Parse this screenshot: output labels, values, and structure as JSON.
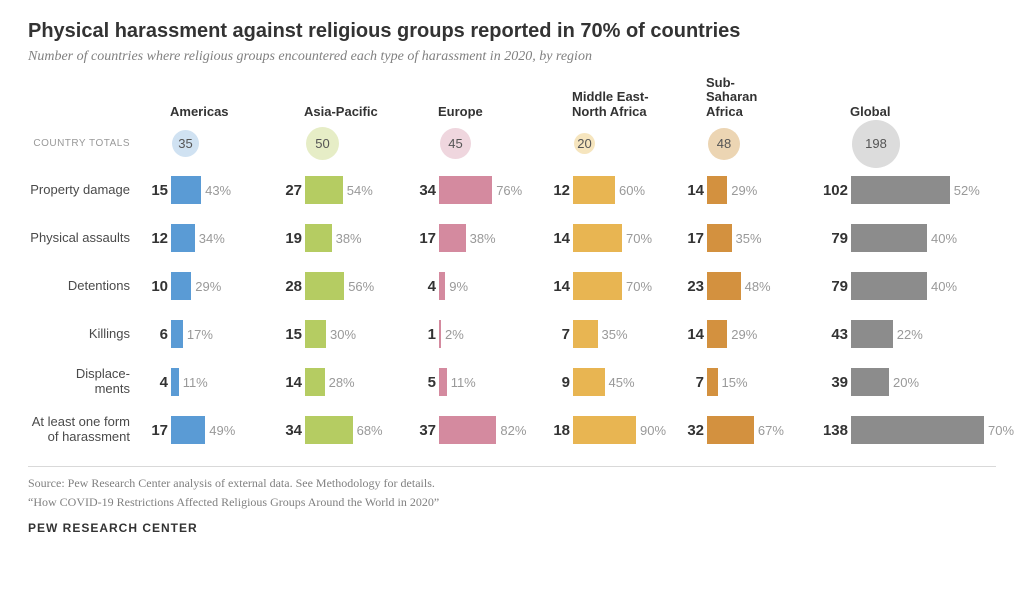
{
  "title": "Physical harassment against religious groups reported in 70% of countries",
  "subtitle": "Number of countries where religious groups encountered each type of harassment in 2020, by region",
  "country_totals_label": "COUNTRY TOTALS",
  "regions": [
    {
      "key": "americas",
      "label": "Americas",
      "total": 35,
      "color": "#5a9bd5",
      "circle_bg": "#d0e2f2",
      "circle_size": 27
    },
    {
      "key": "asia",
      "label": "Asia-Pacific",
      "total": 50,
      "color": "#b5cc62",
      "circle_bg": "#e6edc6",
      "circle_size": 33
    },
    {
      "key": "europe",
      "label": "Europe",
      "total": 45,
      "color": "#d48a9f",
      "circle_bg": "#efd6de",
      "circle_size": 31
    },
    {
      "key": "mena",
      "label": "Middle East-\nNorth Africa",
      "total": 20,
      "color": "#e8b552",
      "circle_bg": "#f6e5be",
      "circle_size": 21
    },
    {
      "key": "ssa",
      "label": "Sub-\nSaharan\nAfrica",
      "total": 48,
      "color": "#d3913f",
      "circle_bg": "#ecd5b3",
      "circle_size": 32
    },
    {
      "key": "global",
      "label": "Global",
      "total": 198,
      "color": "#8c8c8c",
      "circle_bg": "#dcdcdc",
      "circle_size": 48
    }
  ],
  "categories": [
    {
      "label": "Property damage",
      "data": [
        {
          "v": 15,
          "p": 43
        },
        {
          "v": 27,
          "p": 54
        },
        {
          "v": 34,
          "p": 76
        },
        {
          "v": 12,
          "p": 60
        },
        {
          "v": 14,
          "p": 29
        },
        {
          "v": 102,
          "p": 52
        }
      ]
    },
    {
      "label": "Physical assaults",
      "data": [
        {
          "v": 12,
          "p": 34
        },
        {
          "v": 19,
          "p": 38
        },
        {
          "v": 17,
          "p": 38
        },
        {
          "v": 14,
          "p": 70
        },
        {
          "v": 17,
          "p": 35
        },
        {
          "v": 79,
          "p": 40
        }
      ]
    },
    {
      "label": "Detentions",
      "data": [
        {
          "v": 10,
          "p": 29
        },
        {
          "v": 28,
          "p": 56
        },
        {
          "v": 4,
          "p": 9
        },
        {
          "v": 14,
          "p": 70
        },
        {
          "v": 23,
          "p": 48
        },
        {
          "v": 79,
          "p": 40
        }
      ]
    },
    {
      "label": "Killings",
      "data": [
        {
          "v": 6,
          "p": 17
        },
        {
          "v": 15,
          "p": 30
        },
        {
          "v": 1,
          "p": 2
        },
        {
          "v": 7,
          "p": 35
        },
        {
          "v": 14,
          "p": 29
        },
        {
          "v": 43,
          "p": 22
        }
      ]
    },
    {
      "label": "Displace-\nments",
      "data": [
        {
          "v": 4,
          "p": 11
        },
        {
          "v": 14,
          "p": 28
        },
        {
          "v": 5,
          "p": 11
        },
        {
          "v": 9,
          "p": 45
        },
        {
          "v": 7,
          "p": 15
        },
        {
          "v": 39,
          "p": 20
        }
      ]
    },
    {
      "label": "At least one form of harassment",
      "data": [
        {
          "v": 17,
          "p": 49
        },
        {
          "v": 34,
          "p": 68
        },
        {
          "v": 37,
          "p": 82
        },
        {
          "v": 18,
          "p": 90
        },
        {
          "v": 32,
          "p": 67
        },
        {
          "v": 138,
          "p": 70
        }
      ]
    }
  ],
  "bar_scale": {
    "region_max_width": 70,
    "global_max_width": 190,
    "region_full": 100,
    "global_full": 100
  },
  "source_line1": "Source: Pew Research Center analysis of external data. See Methodology for details.",
  "source_line2": "“How COVID-19 Restrictions Affected Religious Groups Around the World in 2020”",
  "footer": "PEW RESEARCH CENTER"
}
